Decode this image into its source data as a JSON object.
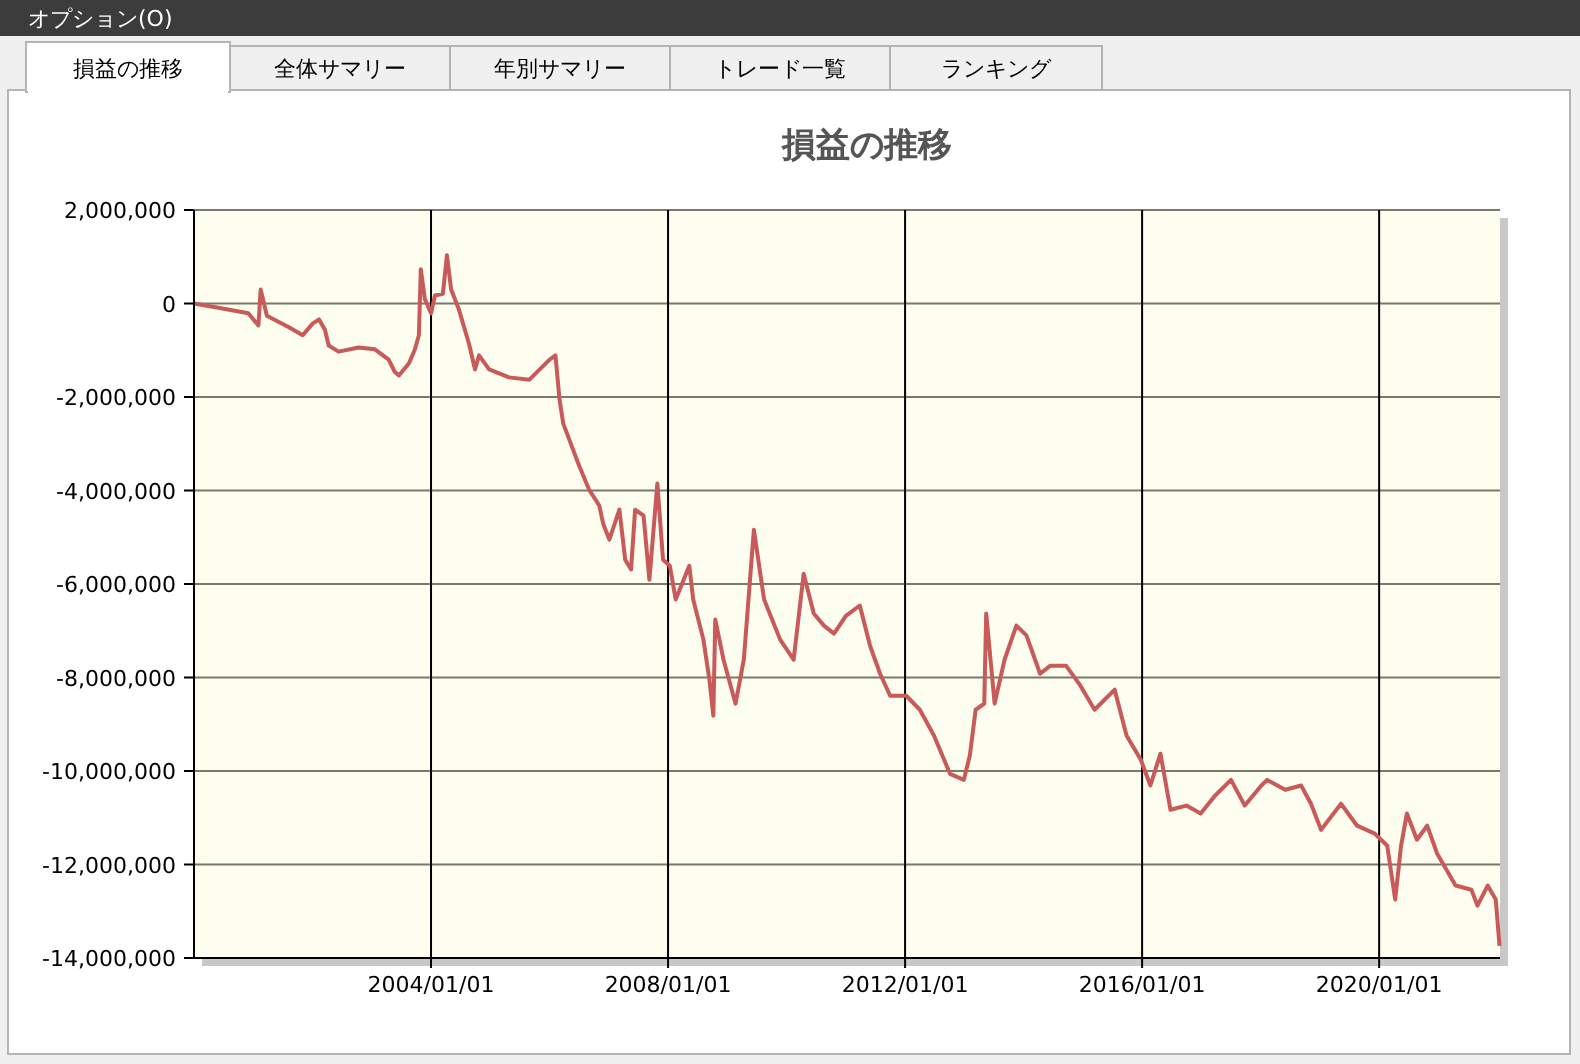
{
  "chart_data": {
    "type": "line",
    "title": "損益の推移",
    "annotations": [
      "オプション(O)",
      "損益の推移",
      "全体サマリー",
      "年別サマリー",
      "トレード一覧",
      "ランキング"
    ],
    "series": [
      {
        "color": "#c85a5a",
        "x": [
          "2000-01-01",
          "2000-05-30",
          "2000-12-01",
          "2001-02-01",
          "2001-02-15",
          "2001-03-25",
          "2001-08-08",
          "2001-11-01",
          "2002-01-01",
          "2002-02-10",
          "2002-03-18",
          "2002-04-10",
          "2002-06-10",
          "2002-10-12",
          "2003-01-20",
          "2003-04-15",
          "2003-05-22",
          "2003-06-17",
          "2003-08-18",
          "2003-09-24",
          "2003-10-18",
          "2003-10-30",
          "2003-11-24",
          "2004-01-01",
          "2004-01-25",
          "2004-03-14",
          "2004-04-08",
          "2004-05-04",
          "2004-06-21",
          "2004-08-22",
          "2004-09-28",
          "2004-10-23",
          "2004-12-24",
          "2005-04-26",
          "2005-08-29",
          "2006-01-01",
          "2006-02-06",
          "2006-03-03",
          "2006-03-26",
          "2006-07-02",
          "2006-09-01",
          "2006-11-03",
          "2006-11-27",
          "2007-01-04",
          "2007-03-07",
          "2007-04-12",
          "2007-05-18",
          "2007-06-12",
          "2007-08-03",
          "2007-09-08",
          "2007-10-27",
          "2007-12-01",
          "2008-01-12",
          "2008-02-17",
          "2008-05-11",
          "2008-06-04",
          "2008-08-06",
          "2008-09-12",
          "2008-10-06",
          "2008-10-18",
          "2008-12-08",
          "2009-02-20",
          "2009-04-12",
          "2009-06-13",
          "2009-08-15",
          "2009-11-22",
          "2010-02-13",
          "2010-04-16",
          "2010-06-17",
          "2010-08-19",
          "2010-10-20",
          "2011-01-01",
          "2011-03-28",
          "2011-05-30",
          "2011-07-31",
          "2011-10-01",
          "2012-01-08",
          "2012-04-01",
          "2012-06-27",
          "2012-10-04",
          "2012-12-28",
          "2013-02-03",
          "2013-03-11",
          "2013-05-03",
          "2013-05-15",
          "2013-07-06",
          "2013-09-05",
          "2013-11-17",
          "2014-01-18",
          "2014-04-12",
          "2014-06-13",
          "2014-09-20",
          "2014-12-16",
          "2015-03-14",
          "2015-07-16",
          "2015-09-27",
          "2015-12-24",
          "2016-02-21",
          "2016-04-23",
          "2016-06-24",
          "2016-09-30",
          "2016-12-27",
          "2017-03-25",
          "2017-07-02",
          "2017-09-25",
          "2018-01-05",
          "2018-02-10",
          "2018-06-01",
          "2018-09-07",
          "2018-11-07",
          "2019-01-08",
          "2019-05-11",
          "2019-08-18",
          "2019-12-05",
          "2020-02-20",
          "2020-04-09",
          "2020-05-15",
          "2020-06-20",
          "2020-08-21",
          "2020-10-23",
          "2020-12-24",
          "2021-04-16",
          "2021-07-23",
          "2021-08-29",
          "2021-10-31",
          "2021-12-20",
          "2022-01-12"
        ],
        "values": [
          0,
          -90000,
          -210000,
          -470000,
          300000,
          -260000,
          -510000,
          -680000,
          -430000,
          -340000,
          -560000,
          -900000,
          -1030000,
          -940000,
          -980000,
          -1200000,
          -1460000,
          -1540000,
          -1280000,
          -980000,
          -680000,
          730000,
          90000,
          -210000,
          170000,
          210000,
          1030000,
          300000,
          -130000,
          -860000,
          -1410000,
          -1110000,
          -1410000,
          -1580000,
          -1630000,
          -1200000,
          -1110000,
          -2050000,
          -2570000,
          -3470000,
          -3980000,
          -4320000,
          -4710000,
          -5050000,
          -4410000,
          -5480000,
          -5690000,
          -4410000,
          -4540000,
          -5910000,
          -3850000,
          -5480000,
          -5610000,
          -6330000,
          -5610000,
          -6330000,
          -7190000,
          -8050000,
          -8820000,
          -6760000,
          -7620000,
          -8560000,
          -7620000,
          -4840000,
          -6330000,
          -7190000,
          -7620000,
          -5780000,
          -6630000,
          -6890000,
          -7060000,
          -6680000,
          -6460000,
          -7320000,
          -7920000,
          -8390000,
          -8390000,
          -8690000,
          -9240000,
          -10060000,
          -10190000,
          -9670000,
          -8690000,
          -8560000,
          -6630000,
          -8560000,
          -7620000,
          -6890000,
          -7100000,
          -7920000,
          -7750000,
          -7750000,
          -8170000,
          -8690000,
          -8260000,
          -9240000,
          -9760000,
          -10310000,
          -9630000,
          -10830000,
          -10740000,
          -10910000,
          -10530000,
          -10190000,
          -10740000,
          -10310000,
          -10190000,
          -10400000,
          -10310000,
          -10700000,
          -11260000,
          -10700000,
          -11170000,
          -11340000,
          -11600000,
          -12750000,
          -11600000,
          -10910000,
          -11470000,
          -11170000,
          -11770000,
          -12450000,
          -12540000,
          -12880000,
          -12450000,
          -12750000,
          -13740000
        ]
      }
    ],
    "xlim": [
      "2000-01-01",
      "2022-01-15"
    ],
    "xticks": [
      {
        "value": "2004-01-01",
        "label": "2004/01/01"
      },
      {
        "value": "2008-01-01",
        "label": "2008/01/01"
      },
      {
        "value": "2012-01-01",
        "label": "2012/01/01"
      },
      {
        "value": "2016-01-01",
        "label": "2016/01/01"
      },
      {
        "value": "2020-01-01",
        "label": "2020/01/01"
      }
    ],
    "ylim": [
      -14000000,
      2000000
    ],
    "yticks": [
      {
        "value": 2000000,
        "label": "2,000,000"
      },
      {
        "value": 0,
        "label": "0"
      },
      {
        "value": -2000000,
        "label": "-2,000,000"
      },
      {
        "value": -4000000,
        "label": "-4,000,000"
      },
      {
        "value": -6000000,
        "label": "-6,000,000"
      },
      {
        "value": -8000000,
        "label": "-8,000,000"
      },
      {
        "value": -10000000,
        "label": "-10,000,000"
      },
      {
        "value": -12000000,
        "label": "-12,000,000"
      },
      {
        "value": -14000000,
        "label": "-14,000,000"
      }
    ],
    "grid": true,
    "marker": "none",
    "line_style": "solid"
  }
}
